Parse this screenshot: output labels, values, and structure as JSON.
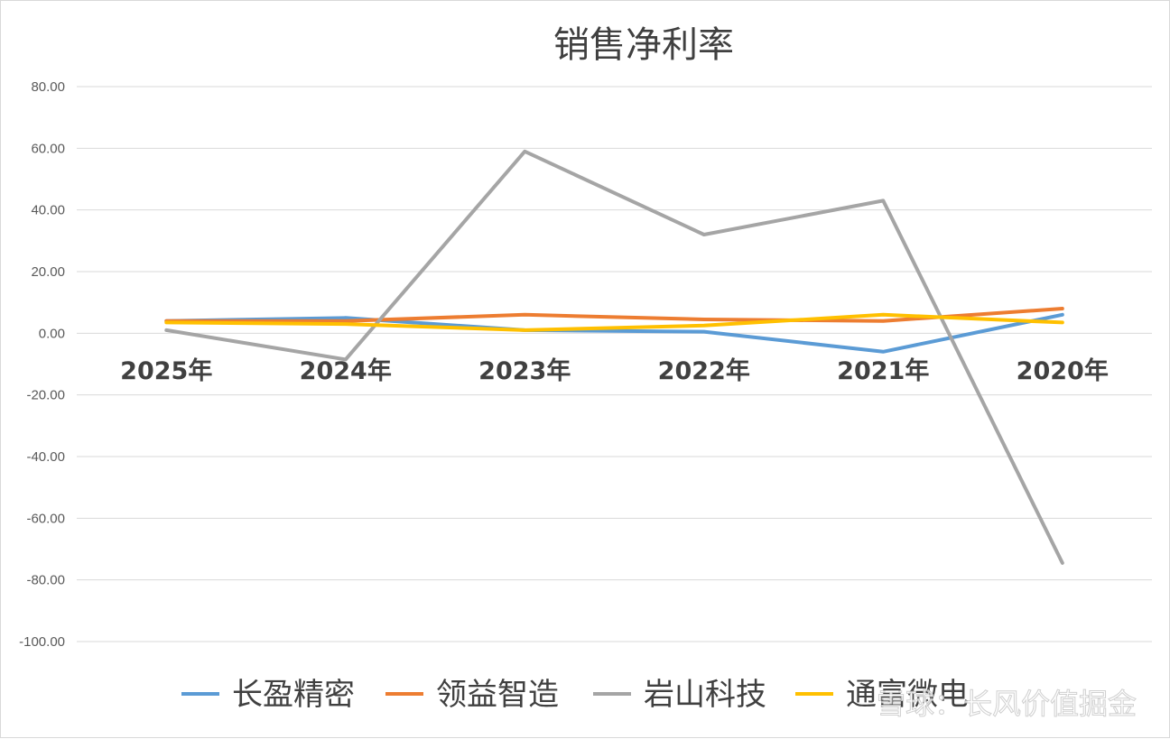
{
  "chart_data": {
    "type": "line",
    "title": "销售净利率",
    "xlabel": "",
    "ylabel": "",
    "categories": [
      "2025年",
      "2024年",
      "2023年",
      "2022年",
      "2021年",
      "2020年"
    ],
    "ylim": [
      -100,
      80
    ],
    "yticks": [
      "80.00",
      "60.00",
      "40.00",
      "20.00",
      "0.00",
      "-20.00",
      "-40.00",
      "-60.00",
      "-80.00",
      "-100.00"
    ],
    "ytick_values": [
      80,
      60,
      40,
      20,
      0,
      -20,
      -40,
      -60,
      -80,
      -100
    ],
    "grid": true,
    "legend_position": "bottom",
    "series": [
      {
        "name": "长盈精密",
        "color": "#5b9bd5",
        "values": [
          4.0,
          5.0,
          1.0,
          0.5,
          -6.0,
          6.0
        ]
      },
      {
        "name": "领益智造",
        "color": "#ed7d31",
        "values": [
          4.0,
          4.0,
          6.0,
          4.5,
          4.0,
          8.0
        ]
      },
      {
        "name": "岩山科技",
        "color": "#a5a5a5",
        "values": [
          1.0,
          -8.5,
          59.0,
          32.0,
          43.0,
          -74.5
        ]
      },
      {
        "name": "通富微电",
        "color": "#ffc000",
        "values": [
          3.5,
          3.0,
          1.0,
          2.5,
          6.0,
          3.5
        ]
      }
    ]
  },
  "watermark": {
    "text": "雪球：长风价值掘金"
  }
}
